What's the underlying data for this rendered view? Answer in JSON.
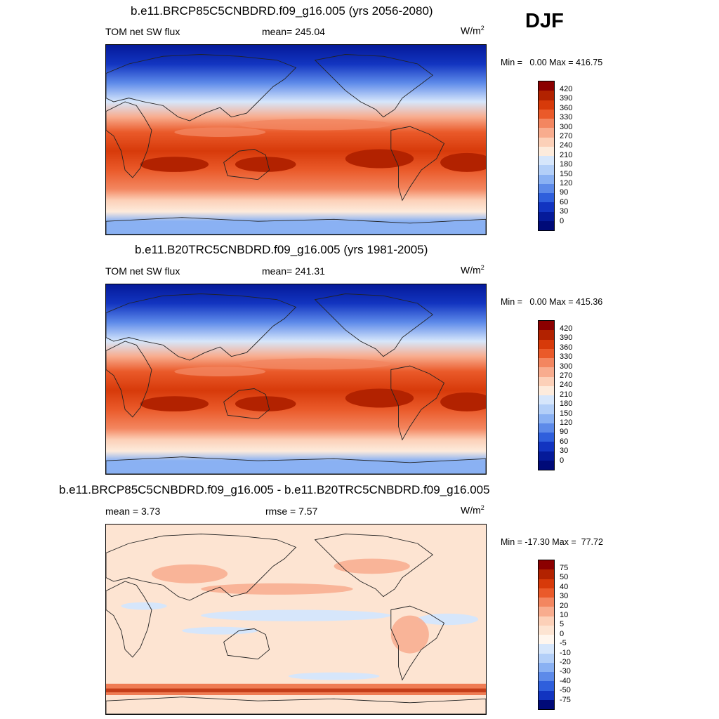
{
  "season": "DJF",
  "panels": [
    {
      "title": "b.e11.BRCP85C5CNBDRD.f09_g16.005 (yrs 2056-2080)",
      "left_label": "TOM net SW flux",
      "mid_label": "mean= 245.04",
      "units_base": "W/m",
      "units_exp": "2",
      "minmax": "Min =   0.00 Max = 416.75",
      "colorbar": {
        "labels": [
          "420",
          "390",
          "360",
          "330",
          "300",
          "270",
          "240",
          "210",
          "180",
          "150",
          "120",
          "90",
          "60",
          "30",
          "0"
        ],
        "colors": [
          "#8b0000",
          "#b22200",
          "#d73a0a",
          "#ea5a2a",
          "#f38660",
          "#f8ac8e",
          "#fcd0b8",
          "#fdebdc",
          "#d6e6fb",
          "#b3cff8",
          "#8ab1f3",
          "#5d8ae9",
          "#2f5fdc",
          "#1234c0",
          "#051a99",
          "#000a78"
        ]
      },
      "map_type": "abs"
    },
    {
      "title": "b.e11.B20TRC5CNBDRD.f09_g16.005 (yrs 1981-2005)",
      "left_label": "TOM net SW flux",
      "mid_label": "mean= 241.31",
      "units_base": "W/m",
      "units_exp": "2",
      "minmax": "Min =   0.00 Max = 415.36",
      "colorbar": {
        "labels": [
          "420",
          "390",
          "360",
          "330",
          "300",
          "270",
          "240",
          "210",
          "180",
          "150",
          "120",
          "90",
          "60",
          "30",
          "0"
        ],
        "colors": [
          "#8b0000",
          "#b22200",
          "#d73a0a",
          "#ea5a2a",
          "#f38660",
          "#f8ac8e",
          "#fcd0b8",
          "#fdebdc",
          "#d6e6fb",
          "#b3cff8",
          "#8ab1f3",
          "#5d8ae9",
          "#2f5fdc",
          "#1234c0",
          "#051a99",
          "#000a78"
        ]
      },
      "map_type": "abs"
    },
    {
      "title": "b.e11.BRCP85C5CNBDRD.f09_g16.005 - b.e11.B20TRC5CNBDRD.f09_g16.005",
      "left_label": "mean =   3.73",
      "mid_label": "rmse =   7.57",
      "units_base": "W/m",
      "units_exp": "2",
      "minmax": "Min = -17.30 Max =  77.72",
      "colorbar": {
        "labels": [
          "75",
          "50",
          "40",
          "30",
          "20",
          "10",
          "5",
          "0",
          "-5",
          "-10",
          "-20",
          "-30",
          "-40",
          "-50",
          "-75"
        ],
        "colors": [
          "#8b0000",
          "#b22200",
          "#d73a0a",
          "#ea5a2a",
          "#f38660",
          "#f8ac8e",
          "#fcd0b8",
          "#fde4d2",
          "#fff6ee",
          "#d6e6fb",
          "#b3cff8",
          "#8ab1f3",
          "#5d8ae9",
          "#2f5fdc",
          "#1234c0",
          "#000a78"
        ]
      },
      "map_type": "diff"
    }
  ]
}
